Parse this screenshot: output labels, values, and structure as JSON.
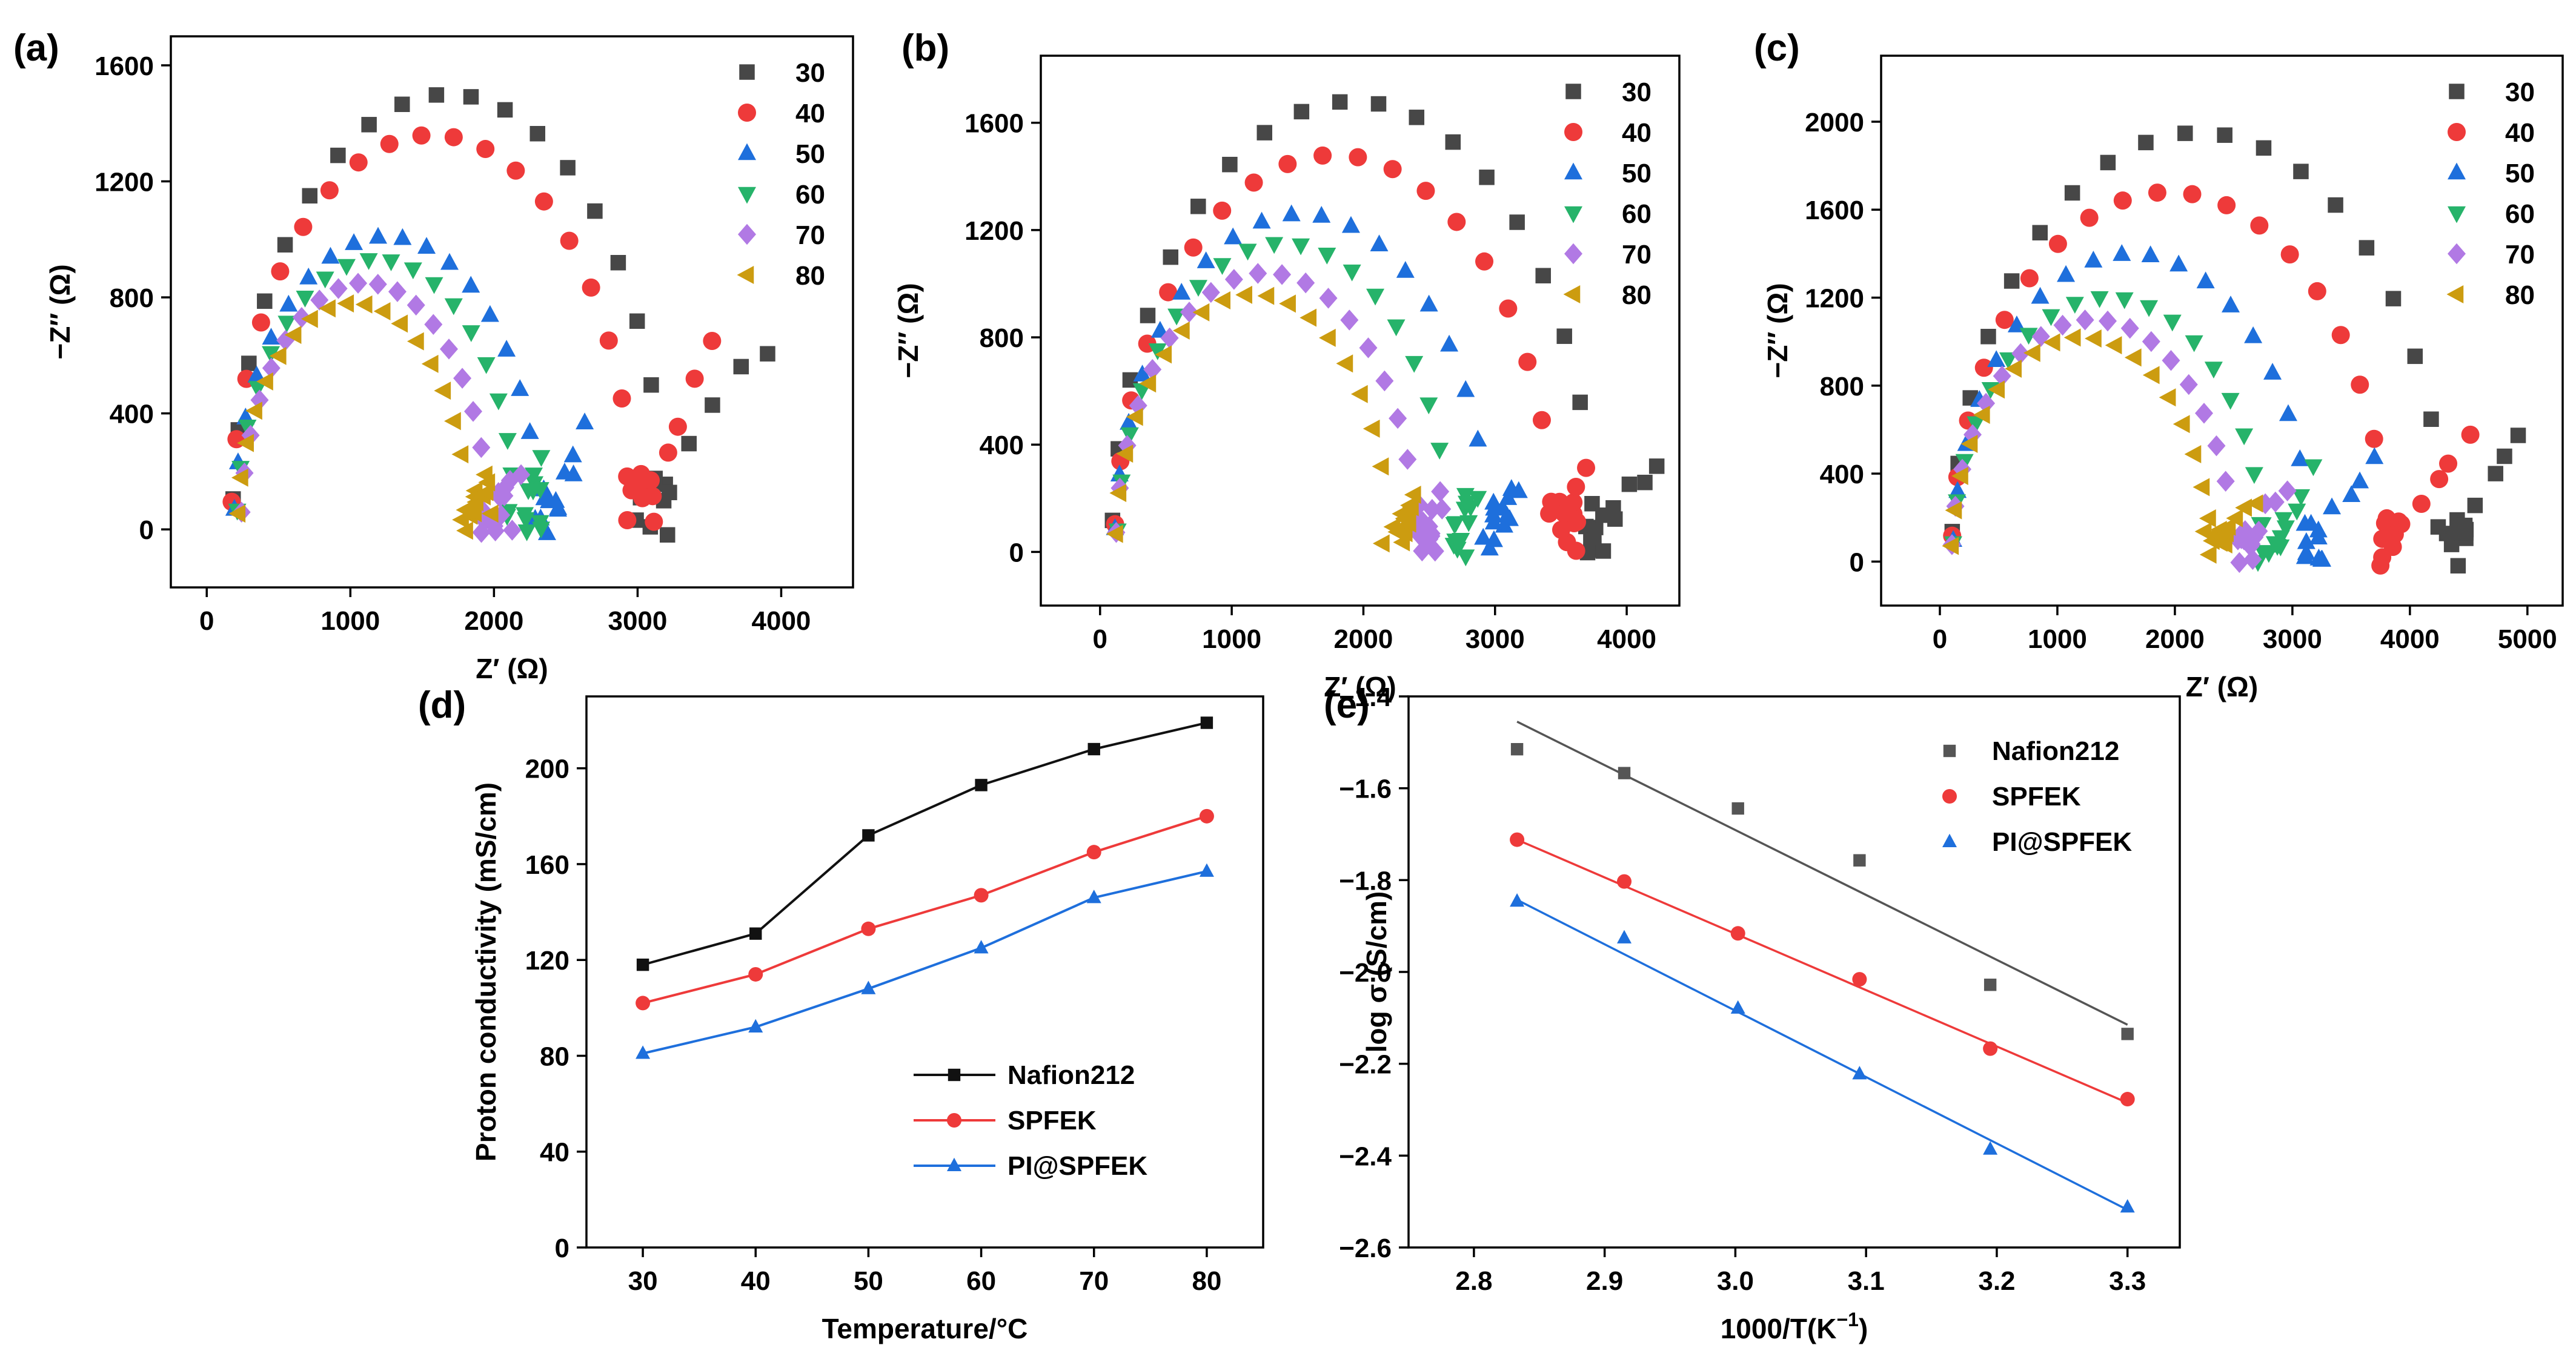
{
  "chart_data": [
    {
      "id": "a",
      "panel_label": "(a)",
      "type": "scatter",
      "xlabel": "Z′ (Ω)",
      "ylabel": "−Z″ (Ω)",
      "xlim": [
        -250,
        4500
      ],
      "ylim": [
        -200,
        1700
      ],
      "xticks": [
        0,
        1000,
        2000,
        3000,
        4000
      ],
      "yticks": [
        0,
        400,
        800,
        1200,
        1600
      ],
      "legend_position": "top-right",
      "series": [
        {
          "name": "30",
          "marker": "square",
          "R": 3050,
          "cx": 1680,
          "rx": 1500,
          "ry": 1500,
          "tail_end": [
            3900,
            640
          ]
        },
        {
          "name": "40",
          "marker": "circle",
          "R": 2970,
          "cx": 1570,
          "rx": 1400,
          "ry": 1360,
          "tail_end": [
            3550,
            620
          ]
        },
        {
          "name": "50",
          "marker": "triangle-up",
          "R": 2320,
          "cx": 1250,
          "rx": 1060,
          "ry": 1010,
          "tail_end": [
            2650,
            350
          ]
        },
        {
          "name": "60",
          "marker": "triangle-down",
          "R": 2150,
          "cx": 1180,
          "rx": 970,
          "ry": 930,
          "tail_end": [
            2350,
            230
          ]
        },
        {
          "name": "70",
          "marker": "diamond",
          "R": 1960,
          "cx": 1100,
          "rx": 860,
          "ry": 850,
          "tail_end": [
            2150,
            200
          ]
        },
        {
          "name": "80",
          "marker": "triangle-left",
          "R": 1830,
          "cx": 1020,
          "rx": 800,
          "ry": 780,
          "tail_end": [
            1980,
            170
          ]
        }
      ]
    },
    {
      "id": "b",
      "panel_label": "(b)",
      "type": "scatter",
      "xlabel": "Z′ (Ω)",
      "ylabel": "−Z″ (Ω)",
      "xlim": [
        -450,
        4400
      ],
      "ylim": [
        -200,
        1850
      ],
      "xticks": [
        0,
        1000,
        2000,
        3000,
        4000
      ],
      "yticks": [
        0,
        400,
        800,
        1200,
        1600
      ],
      "legend_position": "top-right",
      "series": [
        {
          "name": "30",
          "marker": "square",
          "R": 3750,
          "cx": 1920,
          "rx": 1830,
          "ry": 1680,
          "tail_end": [
            4200,
            350
          ]
        },
        {
          "name": "40",
          "marker": "circle",
          "R": 3450,
          "cx": 1780,
          "rx": 1670,
          "ry": 1480,
          "tail_end": [
            3700,
            300
          ]
        },
        {
          "name": "50",
          "marker": "triangle-up",
          "R": 2950,
          "cx": 1530,
          "rx": 1420,
          "ry": 1260,
          "tail_end": [
            3150,
            250
          ]
        },
        {
          "name": "60",
          "marker": "triangle-down",
          "R": 2650,
          "cx": 1390,
          "rx": 1260,
          "ry": 1150,
          "tail_end": [
            2850,
            220
          ]
        },
        {
          "name": "70",
          "marker": "diamond",
          "R": 2400,
          "cx": 1260,
          "rx": 1140,
          "ry": 1040,
          "tail_end": [
            2600,
            200
          ]
        },
        {
          "name": "80",
          "marker": "triangle-left",
          "R": 2200,
          "cx": 1160,
          "rx": 1040,
          "ry": 960,
          "tail_end": [
            2400,
            190
          ]
        }
      ]
    },
    {
      "id": "c",
      "panel_label": "(c)",
      "type": "scatter",
      "xlabel": "Z′ (Ω)",
      "ylabel": "−Z″ (Ω)",
      "xlim": [
        -500,
        5300
      ],
      "ylim": [
        -200,
        2300
      ],
      "xticks": [
        0,
        1000,
        2000,
        3000,
        4000,
        5000
      ],
      "yticks": [
        0,
        400,
        800,
        1200,
        1600,
        2000
      ],
      "legend_position": "top-right",
      "series": [
        {
          "name": "30",
          "marker": "square",
          "R": 4300,
          "cx": 2200,
          "rx": 2100,
          "ry": 1950,
          "tail_end": [
            4950,
            600
          ]
        },
        {
          "name": "40",
          "marker": "circle",
          "R": 3800,
          "cx": 1950,
          "rx": 1850,
          "ry": 1680,
          "tail_end": [
            4500,
            580
          ]
        },
        {
          "name": "50",
          "marker": "triangle-up",
          "R": 3150,
          "cx": 1630,
          "rx": 1520,
          "ry": 1400,
          "tail_end": [
            3700,
            450
          ]
        },
        {
          "name": "60",
          "marker": "triangle-down",
          "R": 2750,
          "cx": 1430,
          "rx": 1320,
          "ry": 1200,
          "tail_end": [
            3200,
            400
          ]
        },
        {
          "name": "70",
          "marker": "diamond",
          "R": 2500,
          "cx": 1300,
          "rx": 1200,
          "ry": 1100,
          "tail_end": [
            2950,
            350
          ]
        },
        {
          "name": "80",
          "marker": "triangle-left",
          "R": 2300,
          "cx": 1200,
          "rx": 1100,
          "ry": 1020,
          "tail_end": [
            2700,
            300
          ]
        }
      ]
    },
    {
      "id": "d",
      "panel_label": "(d)",
      "type": "line",
      "xlabel": "Temperature/°C",
      "ylabel": "Proton conductivity (mS/cm)",
      "xlim": [
        25,
        85
      ],
      "ylim": [
        0,
        230
      ],
      "xticks": [
        30,
        40,
        50,
        60,
        70,
        80
      ],
      "yticks": [
        0,
        40,
        80,
        120,
        160,
        200
      ],
      "legend_position": "bottom-right",
      "x": [
        30,
        40,
        50,
        60,
        70,
        80
      ],
      "series": [
        {
          "name": "Nafion212",
          "marker": "square",
          "values": [
            118,
            131,
            172,
            193,
            208,
            219
          ]
        },
        {
          "name": "SPFEK",
          "marker": "circle",
          "values": [
            102,
            114,
            133,
            147,
            165,
            180
          ]
        },
        {
          "name": "PI@SPFEK",
          "marker": "triangle-up",
          "values": [
            81,
            92,
            108,
            125,
            146,
            157
          ]
        }
      ]
    },
    {
      "id": "e",
      "panel_label": "(e)",
      "type": "scatter",
      "xlabel": "1000/T(K",
      "xlabel_sup": "−1",
      "xlabel_close": ")",
      "ylabel": "log σ (S/cm)",
      "xlim": [
        2.75,
        3.34
      ],
      "ylim": [
        -2.6,
        -1.4
      ],
      "xticks": [
        2.8,
        2.9,
        3.0,
        3.1,
        3.2,
        3.3
      ],
      "xtick_labels": [
        "2.8",
        "2.9",
        "3.0",
        "3.1",
        "3.2",
        "3.3"
      ],
      "yticks": [
        -2.6,
        -2.4,
        -2.2,
        -2.0,
        -1.8,
        -1.6,
        -1.4
      ],
      "ytick_labels": [
        "−2.6",
        "−2.4",
        "−2.2",
        "−2.0",
        "−1.8",
        "−1.6",
        "−1.4"
      ],
      "legend_position": "top-right",
      "x": [
        2.833,
        2.915,
        3.002,
        3.095,
        3.195,
        3.3
      ],
      "series": [
        {
          "name": "Nafion212",
          "marker": "square",
          "values": [
            -1.515,
            -1.567,
            -1.644,
            -1.757,
            -2.028,
            -2.135
          ],
          "fit": [
            -1.455,
            -2.115
          ]
        },
        {
          "name": "SPFEK",
          "marker": "circle",
          "values": [
            -1.712,
            -1.803,
            -1.916,
            -2.016,
            -2.167,
            -2.277
          ],
          "fit": [
            -1.712,
            -2.285
          ]
        },
        {
          "name": "PI@SPFEK",
          "marker": "triangle-up",
          "values": [
            -1.846,
            -1.926,
            -2.079,
            -2.222,
            -2.386,
            -2.512
          ],
          "fit": [
            -1.843,
            -2.518
          ]
        }
      ]
    }
  ],
  "colors": {
    "30": "#474747",
    "40": "#ee3a3a",
    "50": "#1e6fdc",
    "60": "#26b36a",
    "70": "#b179e4",
    "80": "#cc9c10",
    "Nafion212": "#111111",
    "SPFEK": "#ee3a3a",
    "PI@SPFEK": "#1e6fdc",
    "fit_Nafion212": "#555555"
  }
}
